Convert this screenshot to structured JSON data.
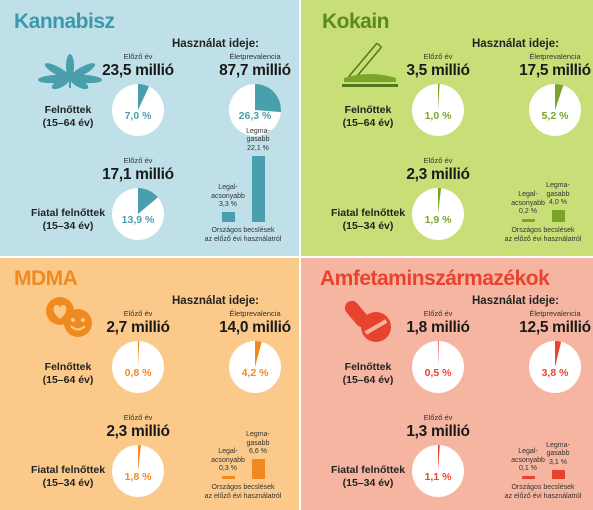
{
  "usage_heading": "Használat ideje:",
  "column_labels": {
    "last_year": "Előző év",
    "lifetime": "Életprevalencia"
  },
  "row_labels": {
    "adults_line1": "Felnőttek",
    "adults_line2": "(15–64 év)",
    "young_line1": "Fiatal felnőttek",
    "young_line2": "(15–34 év)"
  },
  "bar_labels": {
    "low_line1": "Legal-",
    "low_line2": "acsonyabb",
    "high_line1": "Legma-",
    "high_line2": "gasabb"
  },
  "note": {
    "line1": "Országos becslések",
    "line2": "az előző évi használatról"
  },
  "colors": {
    "kannabisz_bg": "#bfe0e8",
    "kannabisz_accent": "#4a9fac",
    "kokain_bg": "#c8df78",
    "kokain_accent": "#7aa528",
    "mdma_bg": "#fbc98a",
    "mdma_accent": "#f08a1e",
    "amfetamin_bg": "#f6b5a0",
    "amfetamin_accent": "#e8432f"
  },
  "chart_data": [
    {
      "type": "pie",
      "key": "kannabisz",
      "title": "Kannabisz",
      "icon": "cannabis-leaf-icon",
      "adults": {
        "last_year_count": "23,5 millió",
        "last_year_pct": 7.0,
        "last_year_pct_label": "7,0 %",
        "lifetime_count": "87,7 millió",
        "lifetime_pct": 26.3,
        "lifetime_pct_label": "26,3 %"
      },
      "young": {
        "last_year_count": "17,1 millió",
        "last_year_pct": 13.9,
        "last_year_pct_label": "13,9 %"
      },
      "country_range": {
        "low": 3.3,
        "low_label": "3,3 %",
        "high": 22.1,
        "high_label": "22,1 %"
      }
    },
    {
      "type": "pie",
      "key": "kokain",
      "title": "Kokain",
      "icon": "straw-powder-icon",
      "adults": {
        "last_year_count": "3,5 millió",
        "last_year_pct": 1.0,
        "last_year_pct_label": "1,0 %",
        "lifetime_count": "17,5 millió",
        "lifetime_pct": 5.2,
        "lifetime_pct_label": "5,2 %"
      },
      "young": {
        "last_year_count": "2,3 millió",
        "last_year_pct": 1.9,
        "last_year_pct_label": "1,9 %"
      },
      "country_range": {
        "low": 0.2,
        "low_label": "0,2 %",
        "high": 4.0,
        "high_label": "4,0 %"
      }
    },
    {
      "type": "pie",
      "key": "mdma",
      "title": "MDMA",
      "icon": "heart-smiley-pills-icon",
      "adults": {
        "last_year_count": "2,7 millió",
        "last_year_pct": 0.8,
        "last_year_pct_label": "0,8 %",
        "lifetime_count": "14,0 millió",
        "lifetime_pct": 4.2,
        "lifetime_pct_label": "4,2 %"
      },
      "young": {
        "last_year_count": "2,3 millió",
        "last_year_pct": 1.8,
        "last_year_pct_label": "1,8 %"
      },
      "country_range": {
        "low": 0.3,
        "low_label": "0,3 %",
        "high": 6.6,
        "high_label": "6,6 %"
      }
    },
    {
      "type": "pie",
      "key": "amfetamin",
      "title": "Amfetaminszármazékok",
      "icon": "pills-icon",
      "adults": {
        "last_year_count": "1,8 millió",
        "last_year_pct": 0.5,
        "last_year_pct_label": "0,5 %",
        "lifetime_count": "12,5 millió",
        "lifetime_pct": 3.8,
        "lifetime_pct_label": "3,8 %"
      },
      "young": {
        "last_year_count": "1,3 millió",
        "last_year_pct": 1.1,
        "last_year_pct_label": "1,1 %"
      },
      "country_range": {
        "low": 0.1,
        "low_label": "0,1 %",
        "high": 3.1,
        "high_label": "3,1 %"
      }
    }
  ]
}
